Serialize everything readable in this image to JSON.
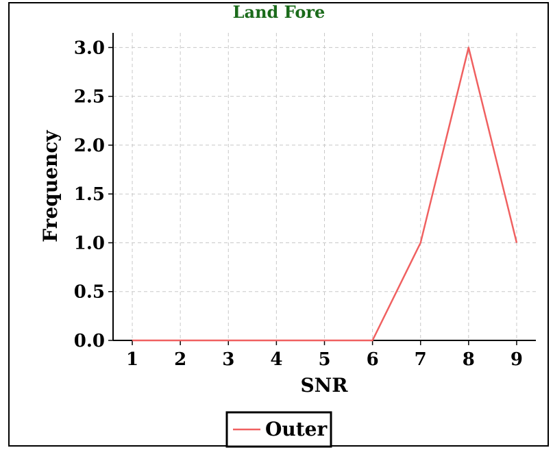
{
  "chart_data": {
    "type": "line",
    "title": "Land Fore",
    "xlabel": "SNR",
    "ylabel": "Frequency",
    "x": [
      1,
      2,
      3,
      4,
      5,
      6,
      7,
      8,
      9
    ],
    "xlim": [
      0.6,
      9.4
    ],
    "ylim": [
      0.0,
      3.15
    ],
    "xticks": [
      "1",
      "2",
      "3",
      "4",
      "5",
      "6",
      "7",
      "8",
      "9"
    ],
    "yticks": [
      "0.0",
      "0.5",
      "1.0",
      "1.5",
      "2.0",
      "2.5",
      "3.0"
    ],
    "grid": true,
    "legend_position": "bottom-center",
    "series": [
      {
        "name": "Outer",
        "color": "#f06060",
        "values": [
          0,
          0,
          0,
          0,
          0,
          0,
          1,
          3,
          1
        ]
      }
    ]
  },
  "colors": {
    "title": "#1b6b1b",
    "grid": "#c8c8c8",
    "axis": "#000000"
  }
}
